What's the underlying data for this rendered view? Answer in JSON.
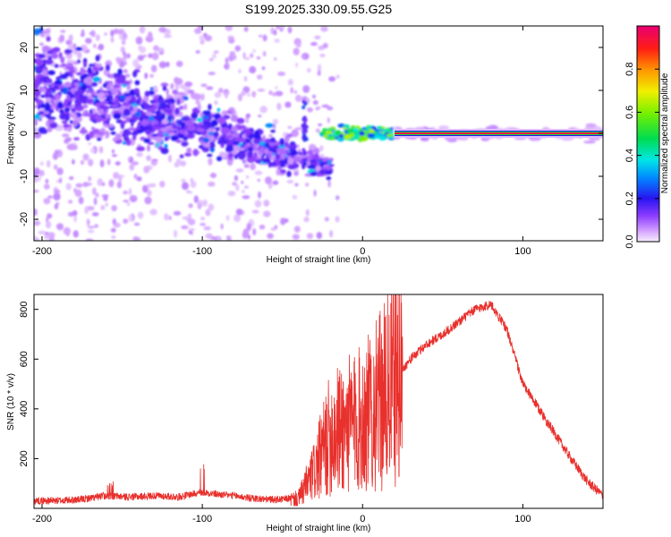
{
  "title": "S199.2025.330.09.55.G25",
  "chart_data": [
    {
      "type": "heatmap",
      "title": "S199.2025.330.09.55.G25",
      "xlabel": "Height of straight line (km)",
      "ylabel": "Frequency (Hz)",
      "xlim": [
        -205,
        150
      ],
      "ylim": [
        -25,
        25
      ],
      "xticks": [
        -200,
        -100,
        0,
        100
      ],
      "xtick_labels": [
        "-200",
        "-100",
        "0",
        "100"
      ],
      "yticks": [
        -20,
        -10,
        0,
        10,
        20
      ],
      "ytick_labels": [
        "-20",
        "-10",
        "0",
        "10",
        "20"
      ],
      "grid": false,
      "colorbar": {
        "label": "Normalized spectral amplitude",
        "range": [
          0,
          1
        ],
        "ticks": [
          0.0,
          0.2,
          0.4,
          0.6,
          0.8
        ],
        "tick_labels": [
          "0.0",
          "0.2",
          "0.4",
          "0.6",
          "0.8"
        ]
      },
      "features": [
        {
          "name": "steady-line",
          "x_range": [
            20,
            150
          ],
          "frequency": 0,
          "amplitude": 0.95
        },
        {
          "name": "diagonal-scatter",
          "x_range": [
            -205,
            -20
          ],
          "frequency_start": 12,
          "frequency_end": -8,
          "amplitude": 0.25
        }
      ]
    },
    {
      "type": "line",
      "xlabel": "Height of straight line (km)",
      "ylabel": "SNR (10 * v/v)",
      "xlim": [
        -205,
        150
      ],
      "ylim": [
        0,
        860
      ],
      "xticks": [
        -200,
        -100,
        0,
        100
      ],
      "xtick_labels": [
        "-200",
        "-100",
        "0",
        "100"
      ],
      "yticks": [
        200,
        400,
        600,
        800
      ],
      "ytick_labels": [
        "200",
        "400",
        "600",
        "800"
      ],
      "grid": false,
      "color": "#e8302c",
      "series": [
        {
          "name": "SNR",
          "x": [
            -205,
            -190,
            -175,
            -160,
            -145,
            -130,
            -115,
            -100,
            -90,
            -80,
            -70,
            -60,
            -50,
            -40,
            -30,
            -20,
            -10,
            0,
            10,
            20,
            30,
            40,
            50,
            60,
            70,
            80,
            90,
            100,
            110,
            120,
            130,
            140,
            150
          ],
          "y": [
            25,
            25,
            30,
            45,
            40,
            45,
            40,
            60,
            50,
            45,
            35,
            30,
            30,
            40,
            150,
            300,
            330,
            360,
            420,
            520,
            600,
            660,
            700,
            750,
            800,
            820,
            720,
            500,
            400,
            300,
            200,
            110,
            50
          ]
        }
      ]
    }
  ]
}
